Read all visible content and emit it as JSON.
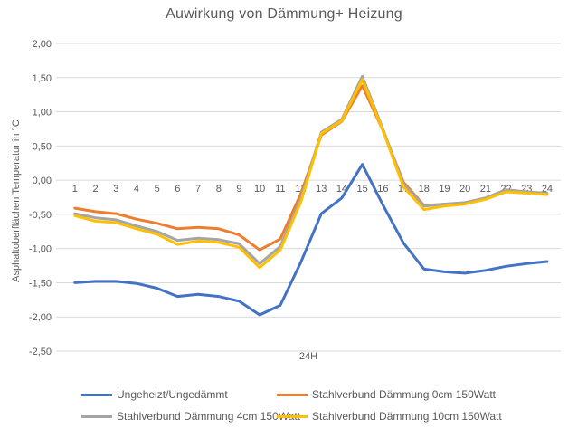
{
  "chart_data": {
    "type": "line",
    "title": "Auwirkung von Dämmung+ Heizung",
    "xlabel": "24H",
    "ylabel": "Asphaltoberflächen Temperatur in °C",
    "ylim": [
      -2.5,
      2.0
    ],
    "ytick_step": 0.5,
    "ytick_labels": [
      "2,00",
      "1,50",
      "1,00",
      "0,50",
      "0,00",
      "-0,50",
      "-1,00",
      "-1,50",
      "-2,00",
      "-2,50"
    ],
    "categories": [
      1,
      2,
      3,
      4,
      5,
      6,
      7,
      8,
      9,
      10,
      11,
      12,
      13,
      14,
      15,
      16,
      17,
      18,
      19,
      20,
      21,
      22,
      23,
      24
    ],
    "grid": true,
    "legend_position": "bottom",
    "axis_text_color": "#595959",
    "gridline_color": "#d9d9d9",
    "series": [
      {
        "name": "Ungeheizt/Ungedämmt",
        "color": "#4472C4",
        "values": [
          -1.5,
          -1.48,
          -1.48,
          -1.51,
          -1.58,
          -1.7,
          -1.67,
          -1.7,
          -1.77,
          -1.97,
          -1.83,
          -1.2,
          -0.49,
          -0.26,
          0.23,
          -0.36,
          -0.92,
          -1.3,
          -1.34,
          -1.36,
          -1.32,
          -1.26,
          -1.22,
          -1.19
        ]
      },
      {
        "name": "Stahlverbund Dämmung 0cm 150Watt",
        "color": "#ED7D31",
        "values": [
          -0.41,
          -0.46,
          -0.49,
          -0.57,
          -0.63,
          -0.71,
          -0.69,
          -0.71,
          -0.8,
          -1.02,
          -0.86,
          -0.2,
          0.66,
          0.86,
          1.38,
          0.73,
          -0.03,
          -0.37,
          -0.35,
          -0.33,
          -0.26,
          -0.15,
          -0.18,
          -0.21
        ]
      },
      {
        "name": "Stahlverbund Dämmung 4cm 150Watt",
        "color": "#A5A5A5",
        "values": [
          -0.49,
          -0.55,
          -0.58,
          -0.67,
          -0.75,
          -0.88,
          -0.85,
          -0.87,
          -0.93,
          -1.22,
          -0.97,
          -0.27,
          0.7,
          0.89,
          1.52,
          0.75,
          -0.06,
          -0.38,
          -0.35,
          -0.33,
          -0.26,
          -0.14,
          -0.17,
          -0.19
        ]
      },
      {
        "name": "Stahlverbund Dämmung 10cm 150Watt",
        "color": "#FFC000",
        "values": [
          -0.52,
          -0.6,
          -0.62,
          -0.71,
          -0.79,
          -0.94,
          -0.89,
          -0.91,
          -0.98,
          -1.28,
          -1.02,
          -0.32,
          0.68,
          0.87,
          1.47,
          0.73,
          -0.1,
          -0.43,
          -0.38,
          -0.35,
          -0.28,
          -0.17,
          -0.19,
          -0.21
        ]
      }
    ]
  }
}
